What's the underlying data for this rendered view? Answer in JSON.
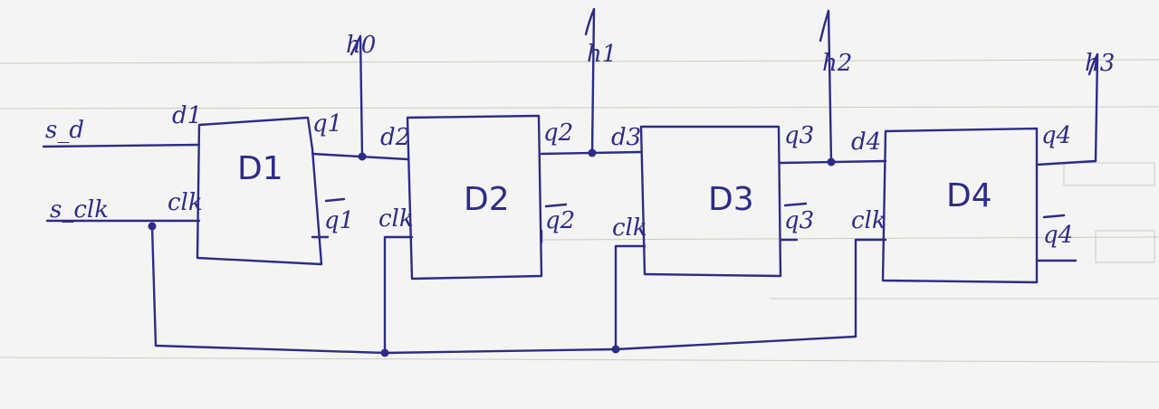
{
  "inputs": {
    "data": "s_d",
    "clock": "s_clk"
  },
  "outputs": [
    "h0",
    "h1",
    "h2",
    "h3"
  ],
  "flipflops": [
    {
      "name": "D1",
      "d": "d1",
      "clk": "clk",
      "q": "q1",
      "qbar": "q1"
    },
    {
      "name": "D2",
      "d": "d2",
      "clk": "clk",
      "q": "q2",
      "qbar": "q2"
    },
    {
      "name": "D3",
      "d": "d3",
      "clk": "clk",
      "q": "q3",
      "qbar": "q3"
    },
    {
      "name": "D4",
      "d": "d4",
      "clk": "clk",
      "q": "q4",
      "qbar": "q4"
    }
  ],
  "colors": {
    "ink": "#2c2c88",
    "paper": "#f4f4f2"
  }
}
